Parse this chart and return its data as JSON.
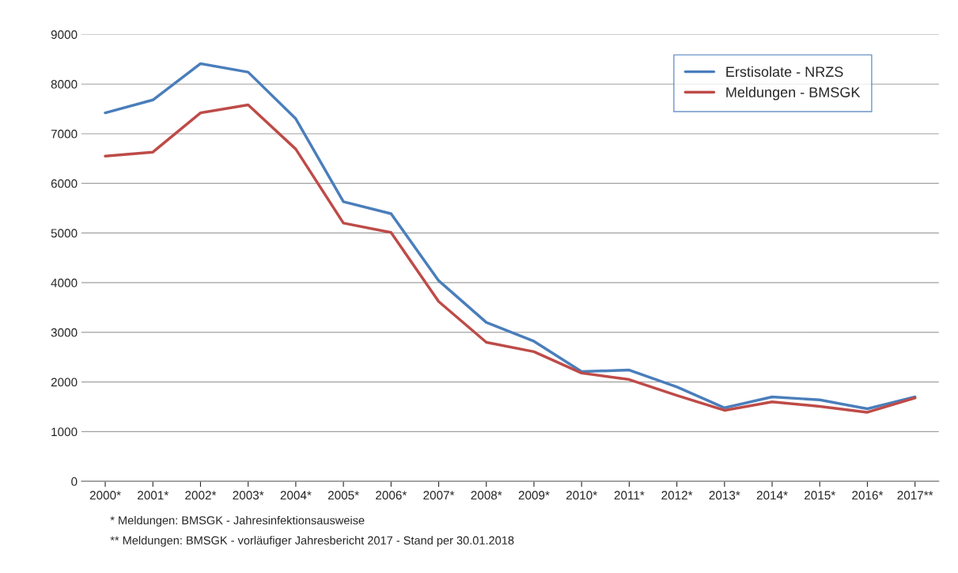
{
  "chart_data": {
    "type": "line",
    "categories": [
      "2000*",
      "2001*",
      "2002*",
      "2003*",
      "2004*",
      "2005*",
      "2006*",
      "2007*",
      "2008*",
      "2009*",
      "2010*",
      "2011*",
      "2012*",
      "2013*",
      "2014*",
      "2015*",
      "2016*",
      "2017**"
    ],
    "series": [
      {
        "name": "Erstisolate - NRZS",
        "color": "#4a7ebb",
        "values": [
          7420,
          7680,
          8410,
          8240,
          7300,
          5630,
          5390,
          4040,
          3200,
          2820,
          2210,
          2240,
          1900,
          1480,
          1700,
          1640,
          1460,
          1700
        ]
      },
      {
        "name": "Meldungen - BMSGK",
        "color": "#be4b48",
        "values": [
          6550,
          6630,
          7420,
          7580,
          6690,
          5200,
          5010,
          3620,
          2800,
          2610,
          2180,
          2050,
          1730,
          1430,
          1600,
          1510,
          1390,
          1680
        ]
      }
    ],
    "ylim": [
      0,
      9000
    ],
    "yticks": [
      0,
      1000,
      2000,
      3000,
      4000,
      5000,
      6000,
      7000,
      8000,
      9000
    ],
    "grid": "y",
    "legend": "top right",
    "marker": "none",
    "line_style": "solid",
    "annotations": [
      "* Meldungen: BMSGK - Jahresinfektionsausweise",
      "** Meldungen: BMSGK - vorläufiger Jahresbericht 2017 - Stand per 30.01.2018"
    ]
  }
}
